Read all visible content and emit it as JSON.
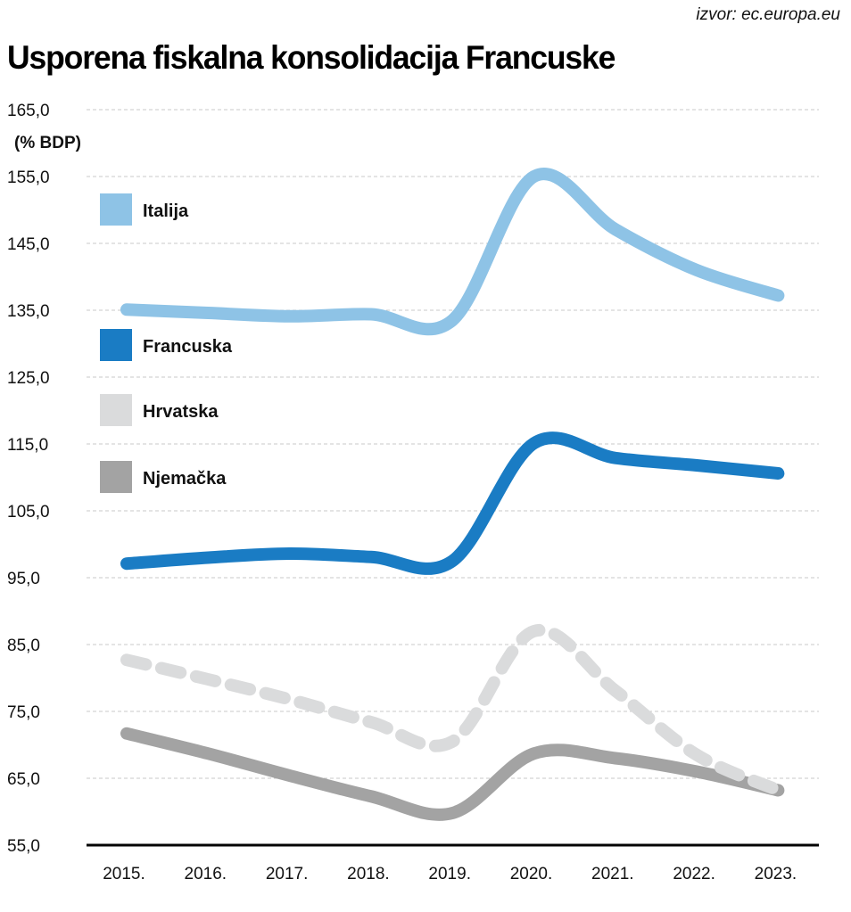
{
  "source": "izvor: ec.europa.eu",
  "chart_data": {
    "type": "line",
    "title": "Usporena fiskalna konsolidacija Francuske",
    "ylabel": "(% BDP)",
    "xlabel": "",
    "x": [
      "2015.",
      "2016.",
      "2017.",
      "2018.",
      "2019.",
      "2020.",
      "2021.",
      "2022.",
      "2023."
    ],
    "yticks": [
      "55,0",
      "65,0",
      "75,0",
      "85,0",
      "95,0",
      "105,0",
      "115,0",
      "125,0",
      "135,0",
      "145,0",
      "155,0",
      "165,0"
    ],
    "ylim": [
      55,
      165
    ],
    "grid": true,
    "legend_position": "left",
    "series": [
      {
        "name": "Italija",
        "color": "#8ec3e6",
        "style": "solid",
        "values": [
          135.1,
          134.6,
          134.1,
          134.4,
          133.5,
          155.0,
          147.1,
          141.0,
          137.2
        ]
      },
      {
        "name": "Francuska",
        "color": "#1a7cc4",
        "style": "solid",
        "values": [
          97.1,
          98.0,
          98.6,
          98.1,
          97.5,
          115.1,
          112.9,
          111.8,
          110.6
        ]
      },
      {
        "name": "Hrvatska",
        "color": "#dadbdc",
        "style": "dashed",
        "values": [
          82.7,
          79.8,
          76.8,
          73.4,
          70.5,
          87.0,
          78.1,
          68.5,
          63.2
        ]
      },
      {
        "name": "Njemačka",
        "color": "#a3a3a3",
        "style": "solid",
        "values": [
          71.7,
          68.7,
          65.4,
          62.3,
          59.8,
          68.7,
          68.0,
          66.0,
          63.2
        ]
      }
    ]
  }
}
